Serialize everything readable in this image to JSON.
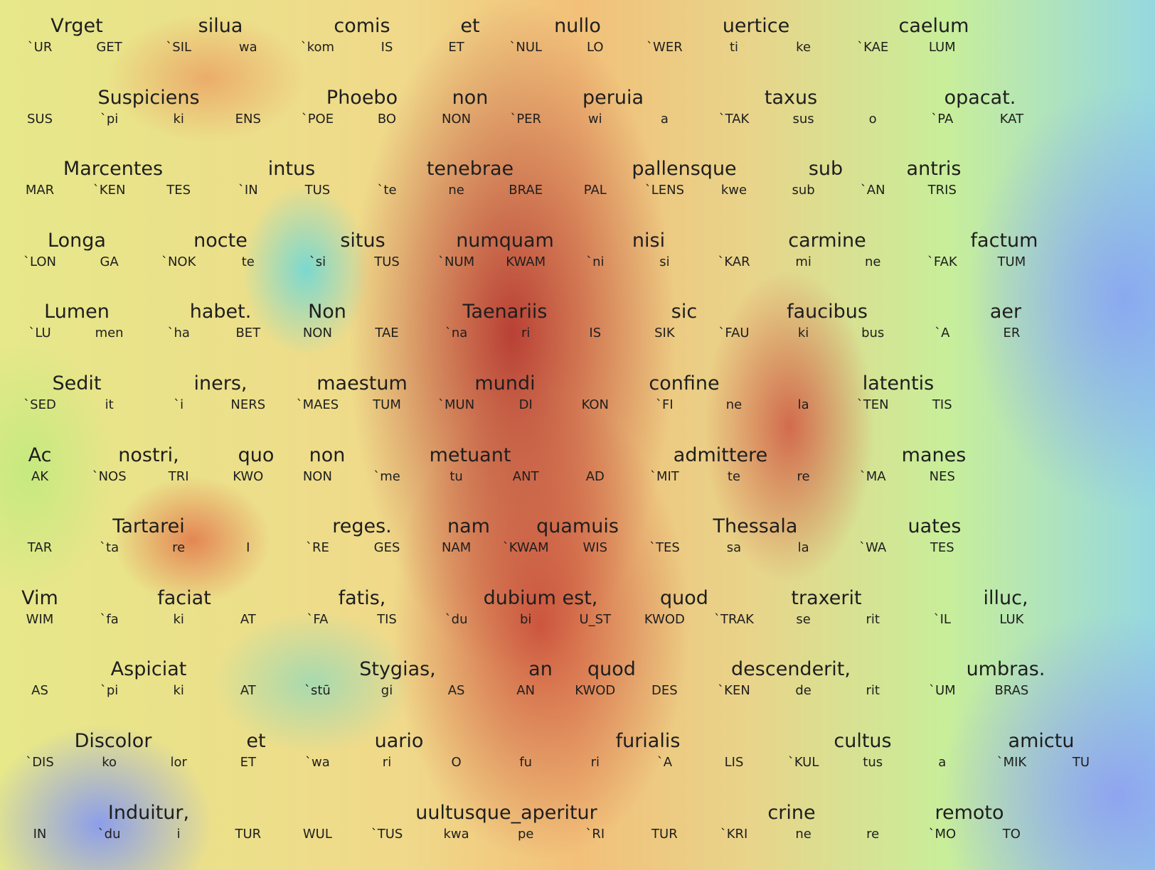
{
  "lines": [
    {
      "words": [
        "Vrget",
        "silua",
        "comis",
        "et",
        "nullo",
        "uertice",
        "caelum"
      ],
      "syllables": [
        "`UR",
        "GET",
        "`SIL",
        "wa",
        "`kom",
        "IS",
        "ET",
        "`NUL",
        "LO",
        "`WER",
        "ti",
        "ke",
        "`KAE",
        "LUM"
      ]
    },
    {
      "words": [
        "Suspiciens",
        "Phoebo",
        "non",
        "peruia",
        "taxus",
        "opacat."
      ],
      "syllables": [
        "SUS",
        "`pi",
        "ki",
        "ENS",
        "`POE",
        "BO",
        "NON",
        "`PER",
        "wi",
        "a",
        "`TAK",
        "sus",
        "o",
        "`PA",
        "KAT"
      ]
    },
    {
      "words": [
        "Marcentes",
        "intus",
        "tenebrae",
        "pallensque",
        "sub",
        "antris"
      ],
      "syllables": [
        "MAR",
        "`KEN",
        "TES",
        "`IN",
        "TUS",
        "`te",
        "ne",
        "BRAE",
        "PAL",
        "`LENS",
        "kwe",
        "sub",
        "`AN",
        "TRIS"
      ]
    },
    {
      "words": [
        "Longa",
        "nocte",
        "situs",
        "numquam",
        "nisi",
        "carmine",
        "factum"
      ],
      "syllables": [
        "`LON",
        "GA",
        "`NOK",
        "te",
        "`si",
        "TUS",
        "`NUM",
        "KWAM",
        "`ni",
        "si",
        "`KAR",
        "mi",
        "ne",
        "`FAK",
        "TUM"
      ]
    },
    {
      "words": [
        "Lumen",
        "habet.",
        "Non",
        "Taenariis",
        "sic",
        "faucibus",
        "aer"
      ],
      "syllables": [
        "`LU",
        "men",
        "`ha",
        "BET",
        "NON",
        "TAE",
        "`na",
        "ri",
        "IS",
        "SIK",
        "`FAU",
        "ki",
        "bus",
        "`A",
        "ER"
      ]
    },
    {
      "words": [
        "Sedit",
        "iners,",
        "maestum",
        "mundi",
        "confine",
        "latentis"
      ],
      "syllables": [
        "`SED",
        "it",
        "`i",
        "NERS",
        "`MAES",
        "TUM",
        "`MUN",
        "DI",
        "KON",
        "`FI",
        "ne",
        "la",
        "`TEN",
        "TIS"
      ]
    },
    {
      "words": [
        "Ac",
        "nostri,",
        "quo",
        "non",
        "metuant",
        "admittere",
        "manes"
      ],
      "syllables": [
        "AK",
        "`NOS",
        "TRI",
        "KWO",
        "NON",
        "`me",
        "tu",
        "ANT",
        "AD",
        "`MIT",
        "te",
        "re",
        "`MA",
        "NES"
      ]
    },
    {
      "words": [
        "Tartarei",
        "reges.",
        "nam",
        "quamuis",
        "Thessala",
        "uates"
      ],
      "syllables": [
        "TAR",
        "`ta",
        "re",
        "I",
        "`RE",
        "GES",
        "NAM",
        "`KWAM",
        "WIS",
        "`TES",
        "sa",
        "la",
        "`WA",
        "TES"
      ]
    },
    {
      "words": [
        "Vim",
        "faciat",
        "fatis,",
        "dubium est,",
        "quod",
        "traxerit",
        "illuc,"
      ],
      "syllables": [
        "WIM",
        "`fa",
        "ki",
        "AT",
        "`FA",
        "TIS",
        "`du",
        "bi",
        "U_ST",
        "KWOD",
        "`TRAK",
        "se",
        "rit",
        "`IL",
        "LUK"
      ]
    },
    {
      "words": [
        "Aspiciat",
        "Stygias,",
        "an",
        "quod",
        "descenderit,",
        "umbras."
      ],
      "syllables": [
        "AS",
        "`pi",
        "ki",
        "AT",
        "`stū",
        "gi",
        "AS",
        "AN",
        "KWOD",
        "DES",
        "`KEN",
        "de",
        "rit",
        "`UM",
        "BRAS"
      ]
    },
    {
      "words": [
        "Discolor",
        "et",
        "uario",
        "furialis",
        "cultus",
        "amictu"
      ],
      "syllables": [
        "`DIS",
        "ko",
        "lor",
        "ET",
        "`wa",
        "ri",
        "O",
        "fu",
        "ri",
        "`A",
        "LIS",
        "`KUL",
        "tus",
        "a",
        "`MIK",
        "TU"
      ]
    },
    {
      "words": [
        "Induitur,",
        "uultusque_aperitur",
        "crine",
        "remoto"
      ],
      "syllables": [
        "IN",
        "`du",
        "i",
        "TUR",
        "WUL",
        "`TUS",
        "kwa",
        "pe",
        "`RI",
        "TUR",
        "`KRI",
        "ne",
        "re",
        "`MO",
        "TO"
      ]
    }
  ]
}
